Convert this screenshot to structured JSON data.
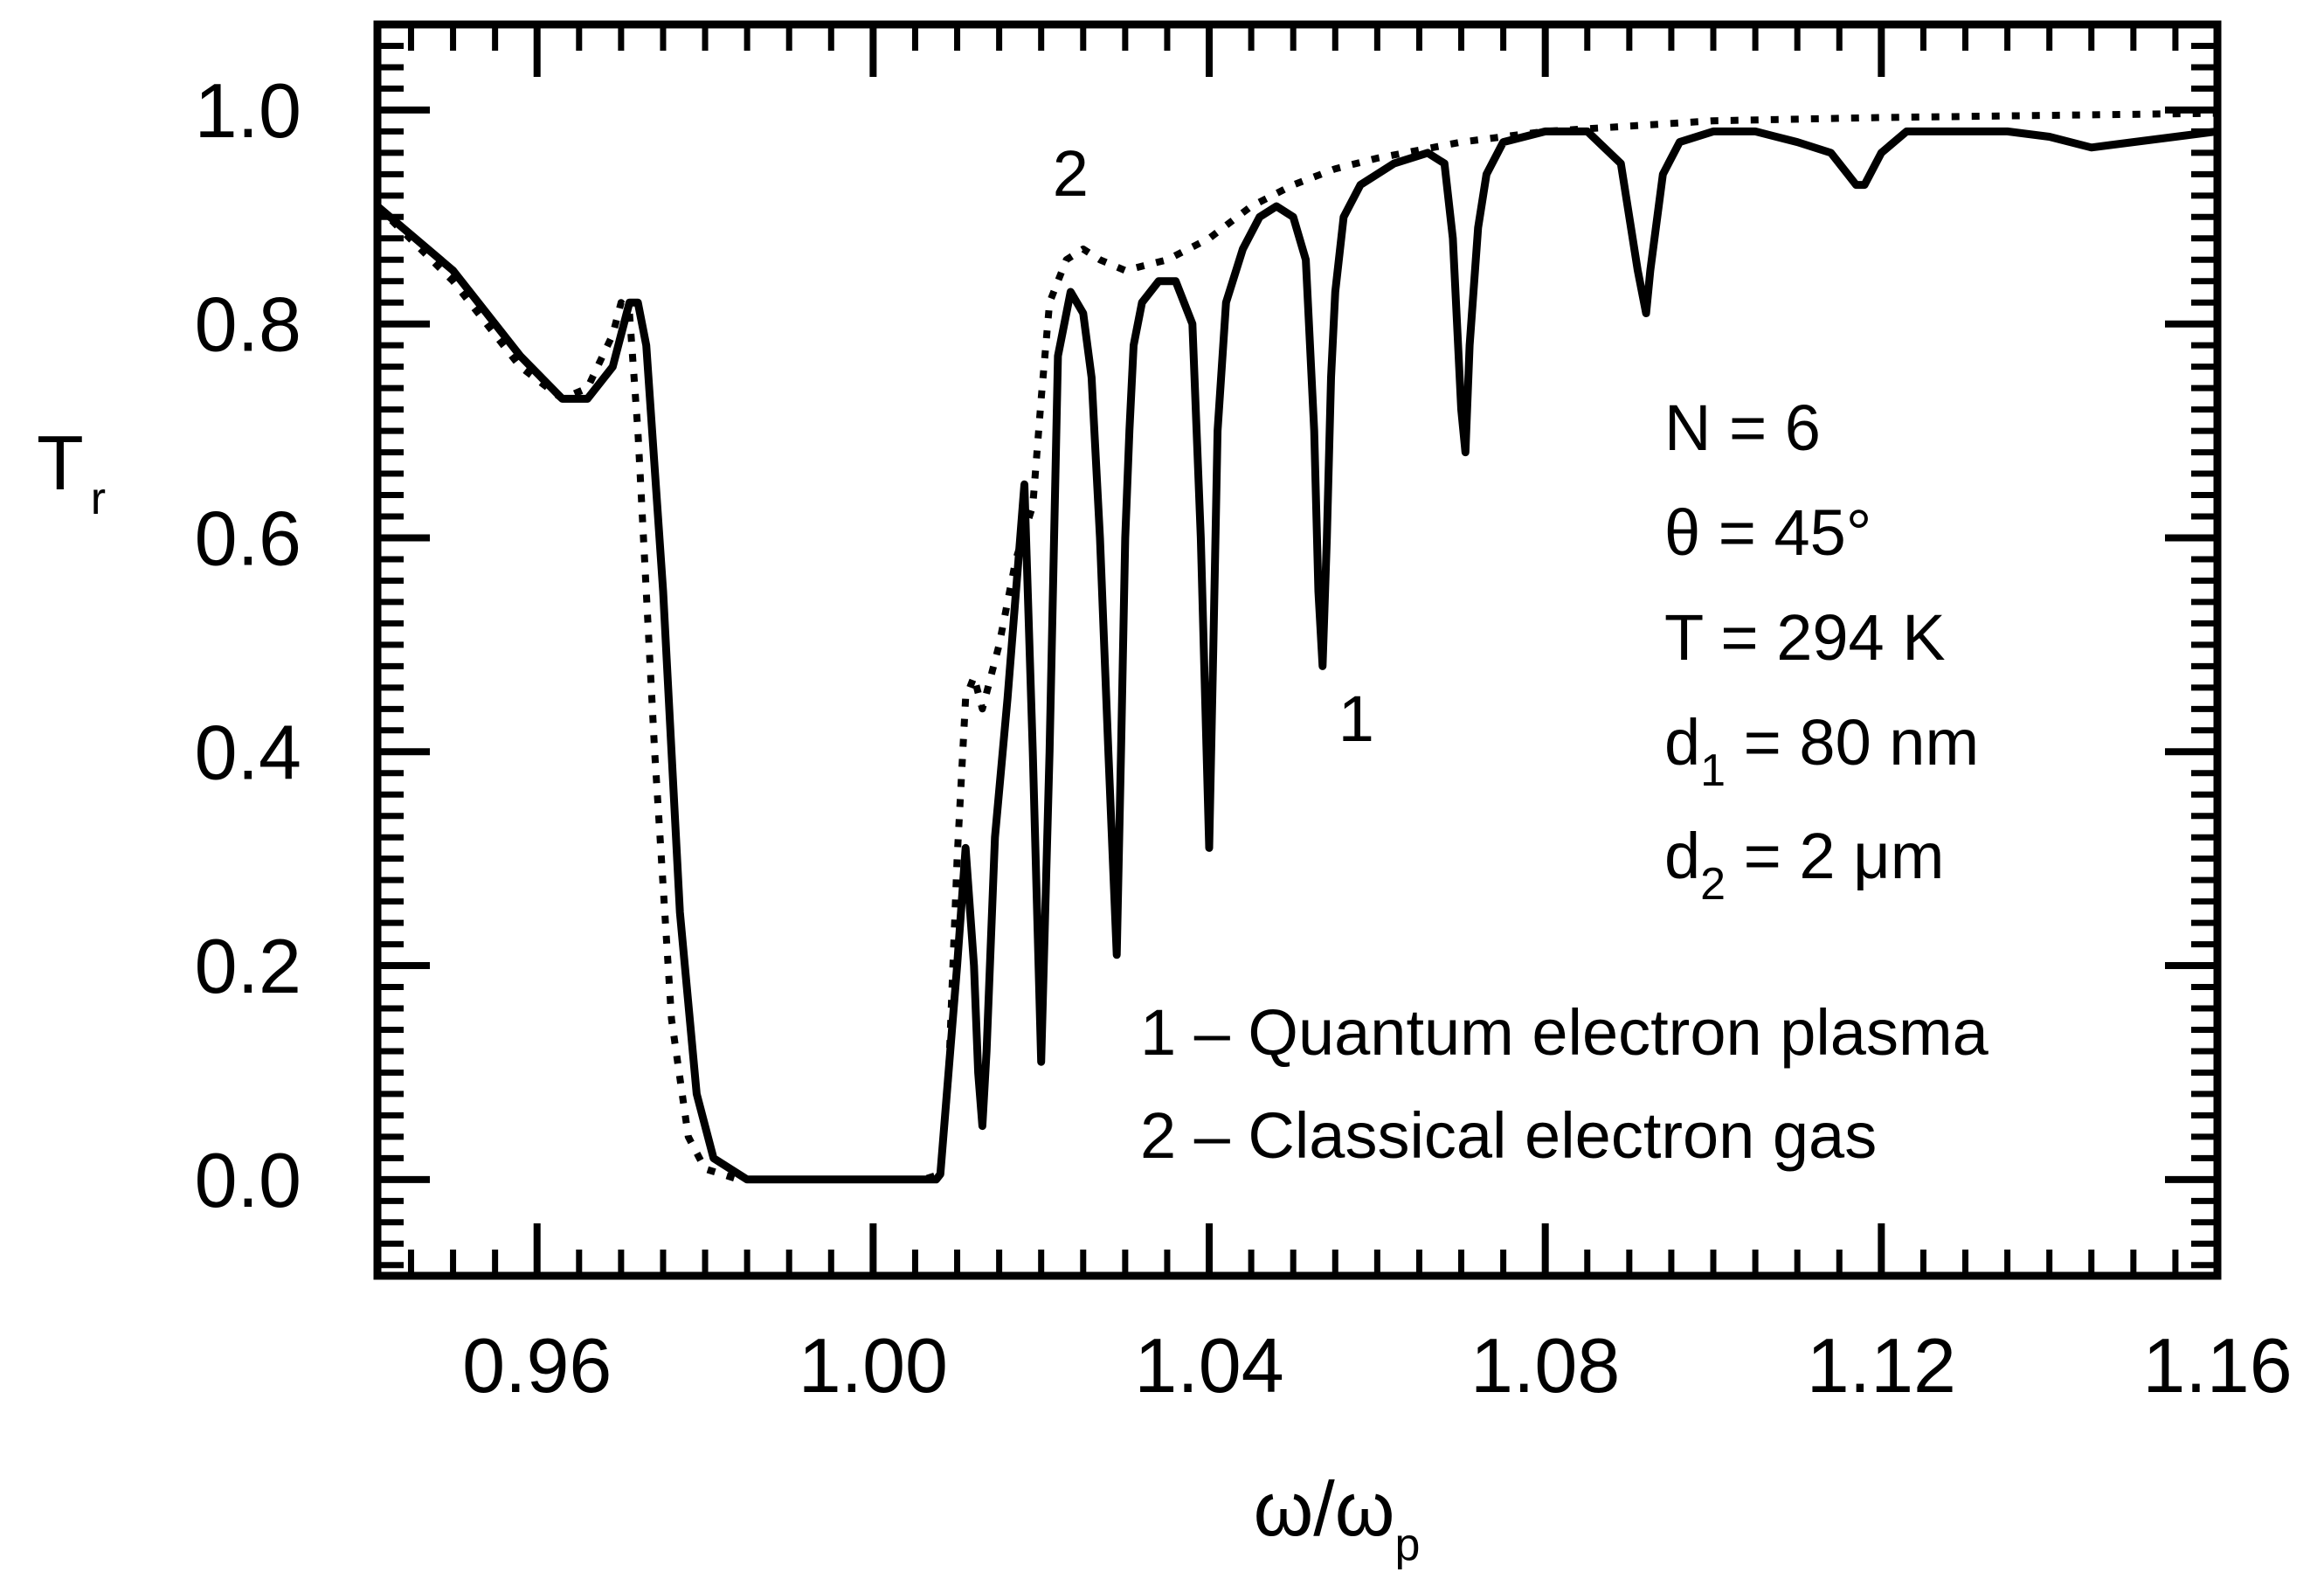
{
  "chart_data": {
    "type": "line",
    "title": "",
    "xlabel": {
      "main": "ω/ω",
      "sub": "p"
    },
    "ylabel": {
      "main": "T",
      "sub": "r"
    },
    "xlim": [
      0.941,
      1.16
    ],
    "ylim": [
      -0.09,
      1.08
    ],
    "x_ticks": [
      0.96,
      1.0,
      1.04,
      1.08,
      1.12,
      1.16
    ],
    "x_tick_labels": [
      "0.96",
      "1.00",
      "1.04",
      "1.08",
      "1.12",
      "1.16"
    ],
    "y_ticks": [
      0.0,
      0.2,
      0.4,
      0.6,
      0.8,
      1.0
    ],
    "y_tick_labels": [
      "0.0",
      "0.2",
      "0.4",
      "0.6",
      "0.8",
      "1.0"
    ],
    "grid": false,
    "series": [
      {
        "name": "1 – Quantum electron plasma",
        "style": "solid",
        "x": [
          0.941,
          0.95,
          0.958,
          0.963,
          0.966,
          0.969,
          0.97,
          0.971,
          0.972,
          0.973,
          0.975,
          0.977,
          0.979,
          0.981,
          0.985,
          1.0,
          1.0075,
          1.008,
          1.01,
          1.011,
          1.012,
          1.0125,
          1.013,
          1.0135,
          1.0145,
          1.016,
          1.0175,
          1.018,
          1.019,
          1.02,
          1.021,
          1.022,
          1.0235,
          1.025,
          1.026,
          1.027,
          1.028,
          1.029,
          1.0295,
          1.03,
          1.0305,
          1.031,
          1.032,
          1.034,
          1.036,
          1.038,
          1.039,
          1.04,
          1.0405,
          1.041,
          1.042,
          1.044,
          1.046,
          1.048,
          1.05,
          1.0515,
          1.0525,
          1.053,
          1.0535,
          1.054,
          1.0545,
          1.055,
          1.056,
          1.058,
          1.062,
          1.066,
          1.068,
          1.069,
          1.07,
          1.0705,
          1.071,
          1.072,
          1.073,
          1.075,
          1.08,
          1.085,
          1.089,
          1.091,
          1.092,
          1.0925,
          1.094,
          1.096,
          1.1,
          1.105,
          1.11,
          1.114,
          1.116,
          1.117,
          1.118,
          1.12,
          1.123,
          1.13,
          1.135,
          1.14,
          1.145,
          1.15,
          1.155,
          1.16
        ],
        "y": [
          0.91,
          0.85,
          0.77,
          0.73,
          0.73,
          0.76,
          0.79,
          0.82,
          0.82,
          0.78,
          0.55,
          0.25,
          0.08,
          0.02,
          0.0,
          0.0,
          0.0,
          0.005,
          0.2,
          0.31,
          0.2,
          0.1,
          0.05,
          0.12,
          0.32,
          0.45,
          0.6,
          0.65,
          0.4,
          0.11,
          0.4,
          0.77,
          0.83,
          0.81,
          0.75,
          0.6,
          0.4,
          0.21,
          0.4,
          0.6,
          0.7,
          0.78,
          0.82,
          0.84,
          0.84,
          0.8,
          0.6,
          0.31,
          0.5,
          0.7,
          0.82,
          0.87,
          0.9,
          0.91,
          0.9,
          0.86,
          0.7,
          0.55,
          0.48,
          0.6,
          0.75,
          0.83,
          0.9,
          0.93,
          0.95,
          0.96,
          0.95,
          0.88,
          0.72,
          0.68,
          0.78,
          0.89,
          0.94,
          0.97,
          0.98,
          0.98,
          0.95,
          0.85,
          0.81,
          0.85,
          0.94,
          0.97,
          0.98,
          0.98,
          0.97,
          0.96,
          0.94,
          0.93,
          0.93,
          0.96,
          0.98,
          0.98,
          0.98,
          0.975,
          0.965,
          0.97,
          0.975,
          0.98
        ]
      },
      {
        "name": "2 – Classical electron gas",
        "style": "dotted",
        "x": [
          0.941,
          0.95,
          0.958,
          0.963,
          0.966,
          0.969,
          0.97,
          0.971,
          0.972,
          0.974,
          0.976,
          0.978,
          0.98,
          0.984,
          1.0,
          1.006,
          1.008,
          1.009,
          1.01,
          1.011,
          1.012,
          1.013,
          1.015,
          1.017,
          1.019,
          1.02,
          1.021,
          1.023,
          1.025,
          1.027,
          1.03,
          1.035,
          1.04,
          1.045,
          1.05,
          1.055,
          1.06,
          1.07,
          1.08,
          1.09,
          1.1,
          1.12,
          1.14,
          1.16
        ],
        "y": [
          0.91,
          0.84,
          0.76,
          0.73,
          0.74,
          0.79,
          0.82,
          0.81,
          0.7,
          0.4,
          0.15,
          0.04,
          0.01,
          0.0,
          0.0,
          0.0,
          0.005,
          0.1,
          0.3,
          0.45,
          0.47,
          0.44,
          0.5,
          0.58,
          0.63,
          0.73,
          0.82,
          0.86,
          0.87,
          0.86,
          0.85,
          0.86,
          0.88,
          0.91,
          0.93,
          0.945,
          0.955,
          0.97,
          0.98,
          0.985,
          0.99,
          0.993,
          0.995,
          0.997
        ]
      }
    ],
    "curve_labels": [
      {
        "text": "2",
        "x": 1.0235,
        "y": 0.92
      },
      {
        "text": "1",
        "x": 1.0575,
        "y": 0.41
      }
    ],
    "parameters": [
      {
        "main": "N = 6",
        "sub": "",
        "after": ""
      },
      {
        "main": "θ = 45°",
        "sub": "",
        "after": ""
      },
      {
        "main": "T = 294 K",
        "sub": "",
        "after": ""
      },
      {
        "main": "d",
        "sub": "1",
        "after": " = 80 nm"
      },
      {
        "main": "d",
        "sub": "2",
        "after": " = 2 μm"
      }
    ],
    "legend": {
      "placement": "bottom-right",
      "entries": [
        "1 – Quantum electron plasma",
        "2 – Classical electron gas"
      ]
    }
  }
}
